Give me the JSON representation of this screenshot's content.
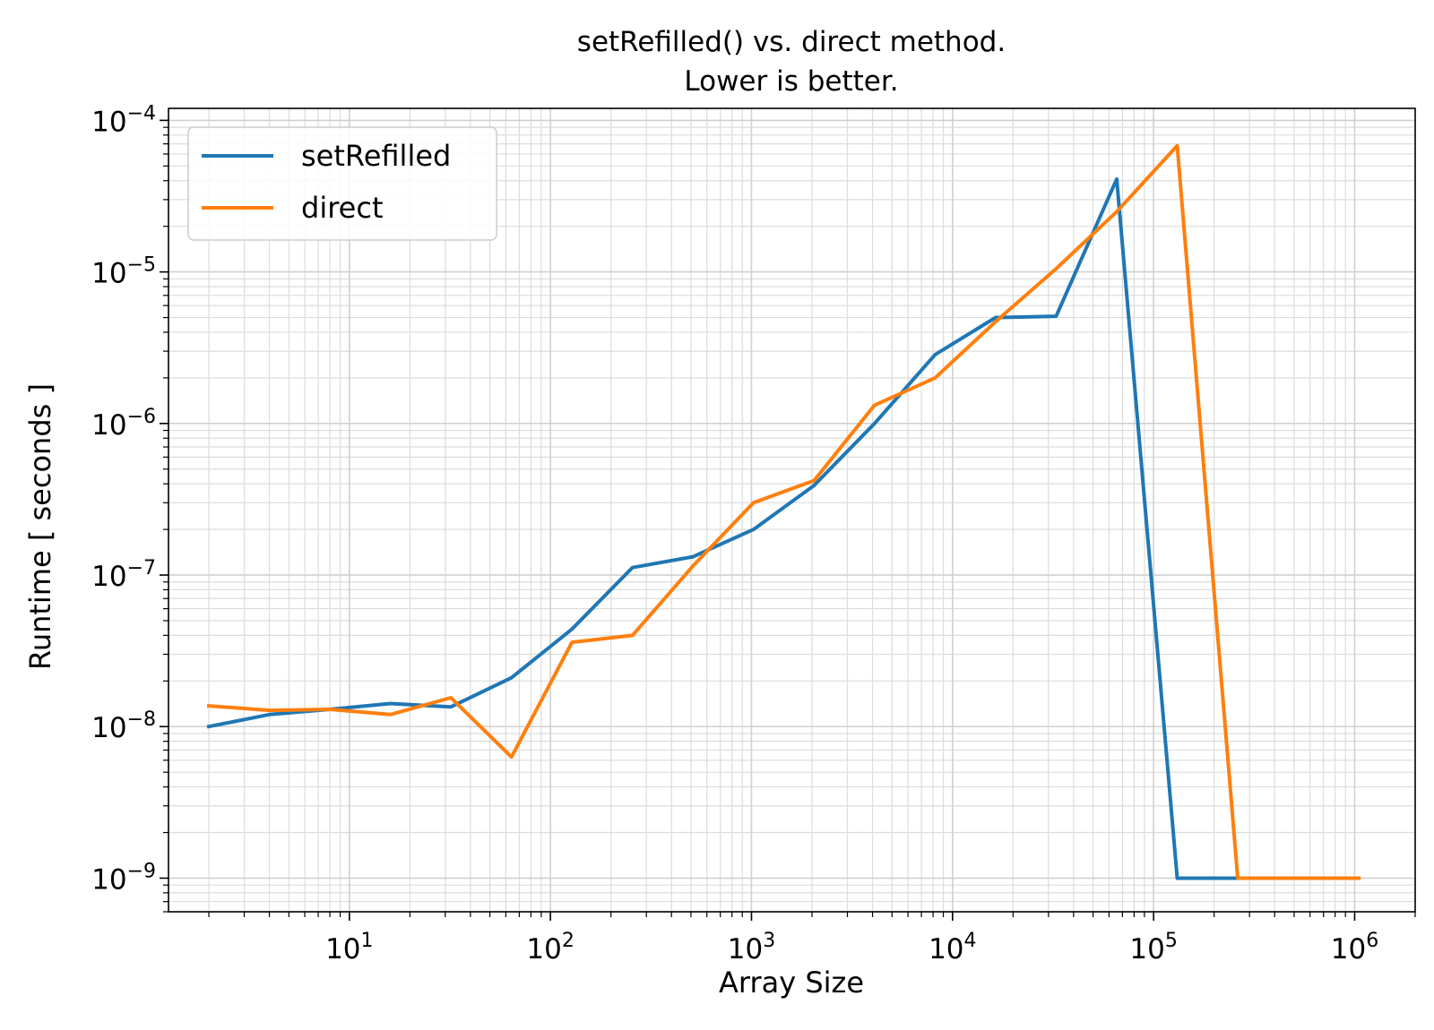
{
  "chart_data": {
    "type": "line",
    "title": [
      "setRefilled() vs. direct method.",
      "Lower is better."
    ],
    "xlabel": "Array Size",
    "ylabel": "Runtime [ seconds ]",
    "xscale": "log",
    "yscale": "log",
    "xlim": [
      1.26,
      2000000
    ],
    "ylim": [
      6e-10,
      0.00012
    ],
    "xticks": [
      10,
      100,
      1000,
      10000,
      100000,
      1000000
    ],
    "xtick_labels": [
      {
        "base": "10",
        "exp": "1"
      },
      {
        "base": "10",
        "exp": "2"
      },
      {
        "base": "10",
        "exp": "3"
      },
      {
        "base": "10",
        "exp": "4"
      },
      {
        "base": "10",
        "exp": "5"
      },
      {
        "base": "10",
        "exp": "6"
      }
    ],
    "yticks": [
      1e-09,
      1e-08,
      1e-07,
      1e-06,
      1e-05,
      0.0001
    ],
    "ytick_labels": [
      {
        "base": "10",
        "exp": "−9"
      },
      {
        "base": "10",
        "exp": "−8"
      },
      {
        "base": "10",
        "exp": "−7"
      },
      {
        "base": "10",
        "exp": "−6"
      },
      {
        "base": "10",
        "exp": "−5"
      },
      {
        "base": "10",
        "exp": "−4"
      }
    ],
    "grid": "both major and minor",
    "legend_position": "upper-left",
    "x": [
      2,
      4,
      8,
      16,
      32,
      64,
      128,
      256,
      512,
      1024,
      2048,
      4096,
      8192,
      16384,
      32768,
      65536,
      131072,
      262144,
      524288,
      1048576
    ],
    "series": [
      {
        "name": "setRefilled",
        "color": "#1f77b4",
        "values": [
          1e-08,
          1.2e-08,
          1.3e-08,
          1.42e-08,
          1.35e-08,
          2.1e-08,
          4.4e-08,
          1.12e-07,
          1.32e-07,
          2e-07,
          3.9e-07,
          1e-06,
          2.85e-06,
          5e-06,
          5.1e-06,
          4.1e-05,
          1e-09,
          1e-09,
          1e-09,
          1e-09
        ]
      },
      {
        "name": "direct",
        "color": "#ff7f0e",
        "values": [
          1.37e-08,
          1.28e-08,
          1.3e-08,
          1.2e-08,
          1.55e-08,
          6.3e-09,
          3.6e-08,
          4e-08,
          1.15e-07,
          3e-07,
          4.2e-07,
          1.32e-06,
          2e-06,
          4.7e-06,
          1.05e-05,
          2.5e-05,
          6.8e-05,
          1e-09,
          1e-09,
          1e-09
        ]
      }
    ]
  }
}
